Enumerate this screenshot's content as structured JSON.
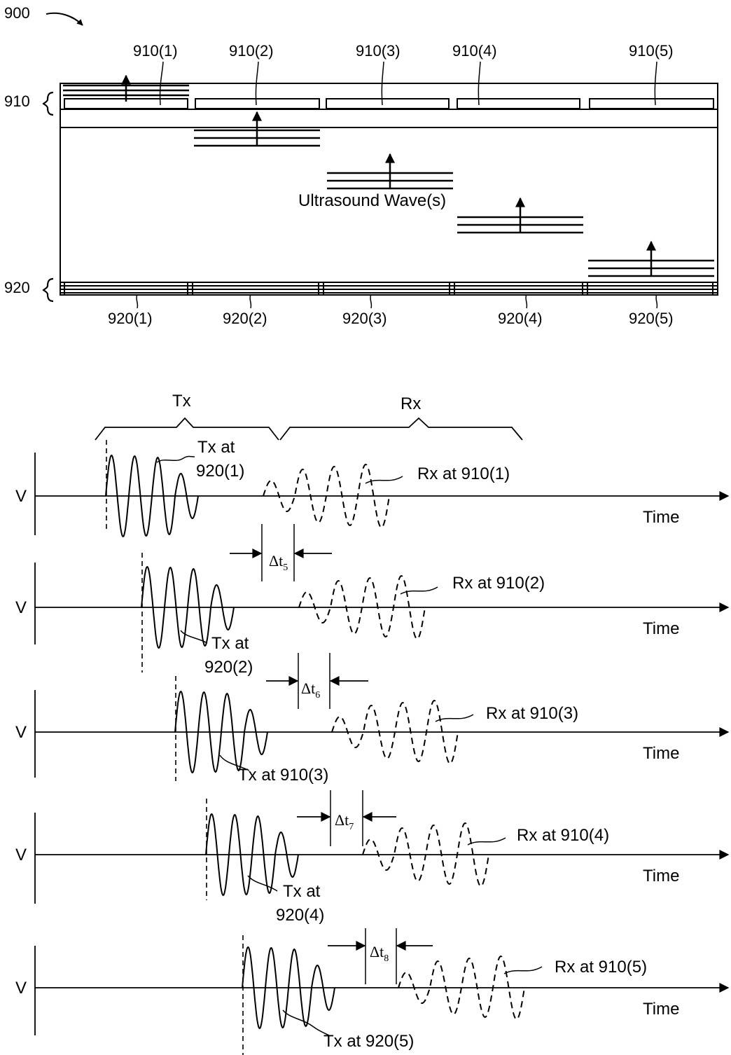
{
  "figure": {
    "number": "900",
    "layer_top": "910",
    "layer_bottom": "920",
    "wave_label": "Ultrasound Wave(s)",
    "elements_top": [
      "910(1)",
      "910(2)",
      "910(3)",
      "910(4)",
      "910(5)"
    ],
    "elements_bottom": [
      "920(1)",
      "920(2)",
      "920(3)",
      "920(4)",
      "920(5)"
    ]
  },
  "timing": {
    "phase_tx": "Tx",
    "phase_rx": "Rx",
    "axis_y": "V",
    "axis_x": "Time",
    "rows": [
      {
        "tx_label": "Tx at 920(1)",
        "rx_label": "Rx at 910(1)",
        "delta": null
      },
      {
        "tx_label": "Tx at 920(2)",
        "rx_label": "Rx at 910(2)",
        "delta": "5"
      },
      {
        "tx_label": "Tx at 910(3)",
        "rx_label": "Rx at 910(3)",
        "delta": "6"
      },
      {
        "tx_label": "Tx at 920(4)",
        "rx_label": "Rx at 910(4)",
        "delta": "7"
      },
      {
        "tx_label": "Tx at 920(5)",
        "rx_label": "Rx at 910(5)",
        "delta": "8"
      }
    ]
  }
}
